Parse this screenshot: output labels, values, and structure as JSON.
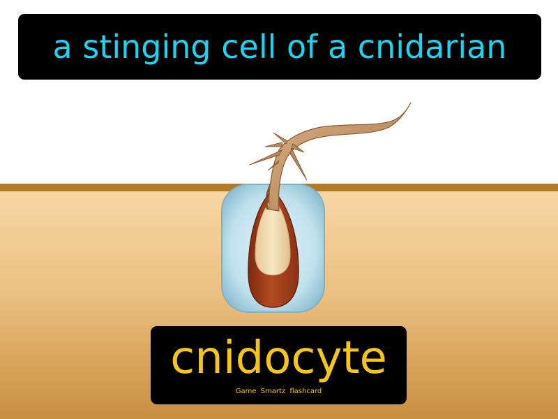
{
  "flashcard": {
    "definition": "a stinging cell of a cnidarian",
    "term": "cnidocyte",
    "brand": "Game Smartz flashcard"
  },
  "colors": {
    "definition_text": "#1ed3f0",
    "term_text": "#f5c518",
    "box_background": "#000000",
    "ground_line": "#b17a25",
    "cell_body": "#bfe3ef",
    "capsule": "#a0401c",
    "capsule_inner": "#f1dcb0",
    "thread": "#c79c6c"
  },
  "illustration": {
    "subject": "cnidocyte-with-discharged-thread"
  }
}
